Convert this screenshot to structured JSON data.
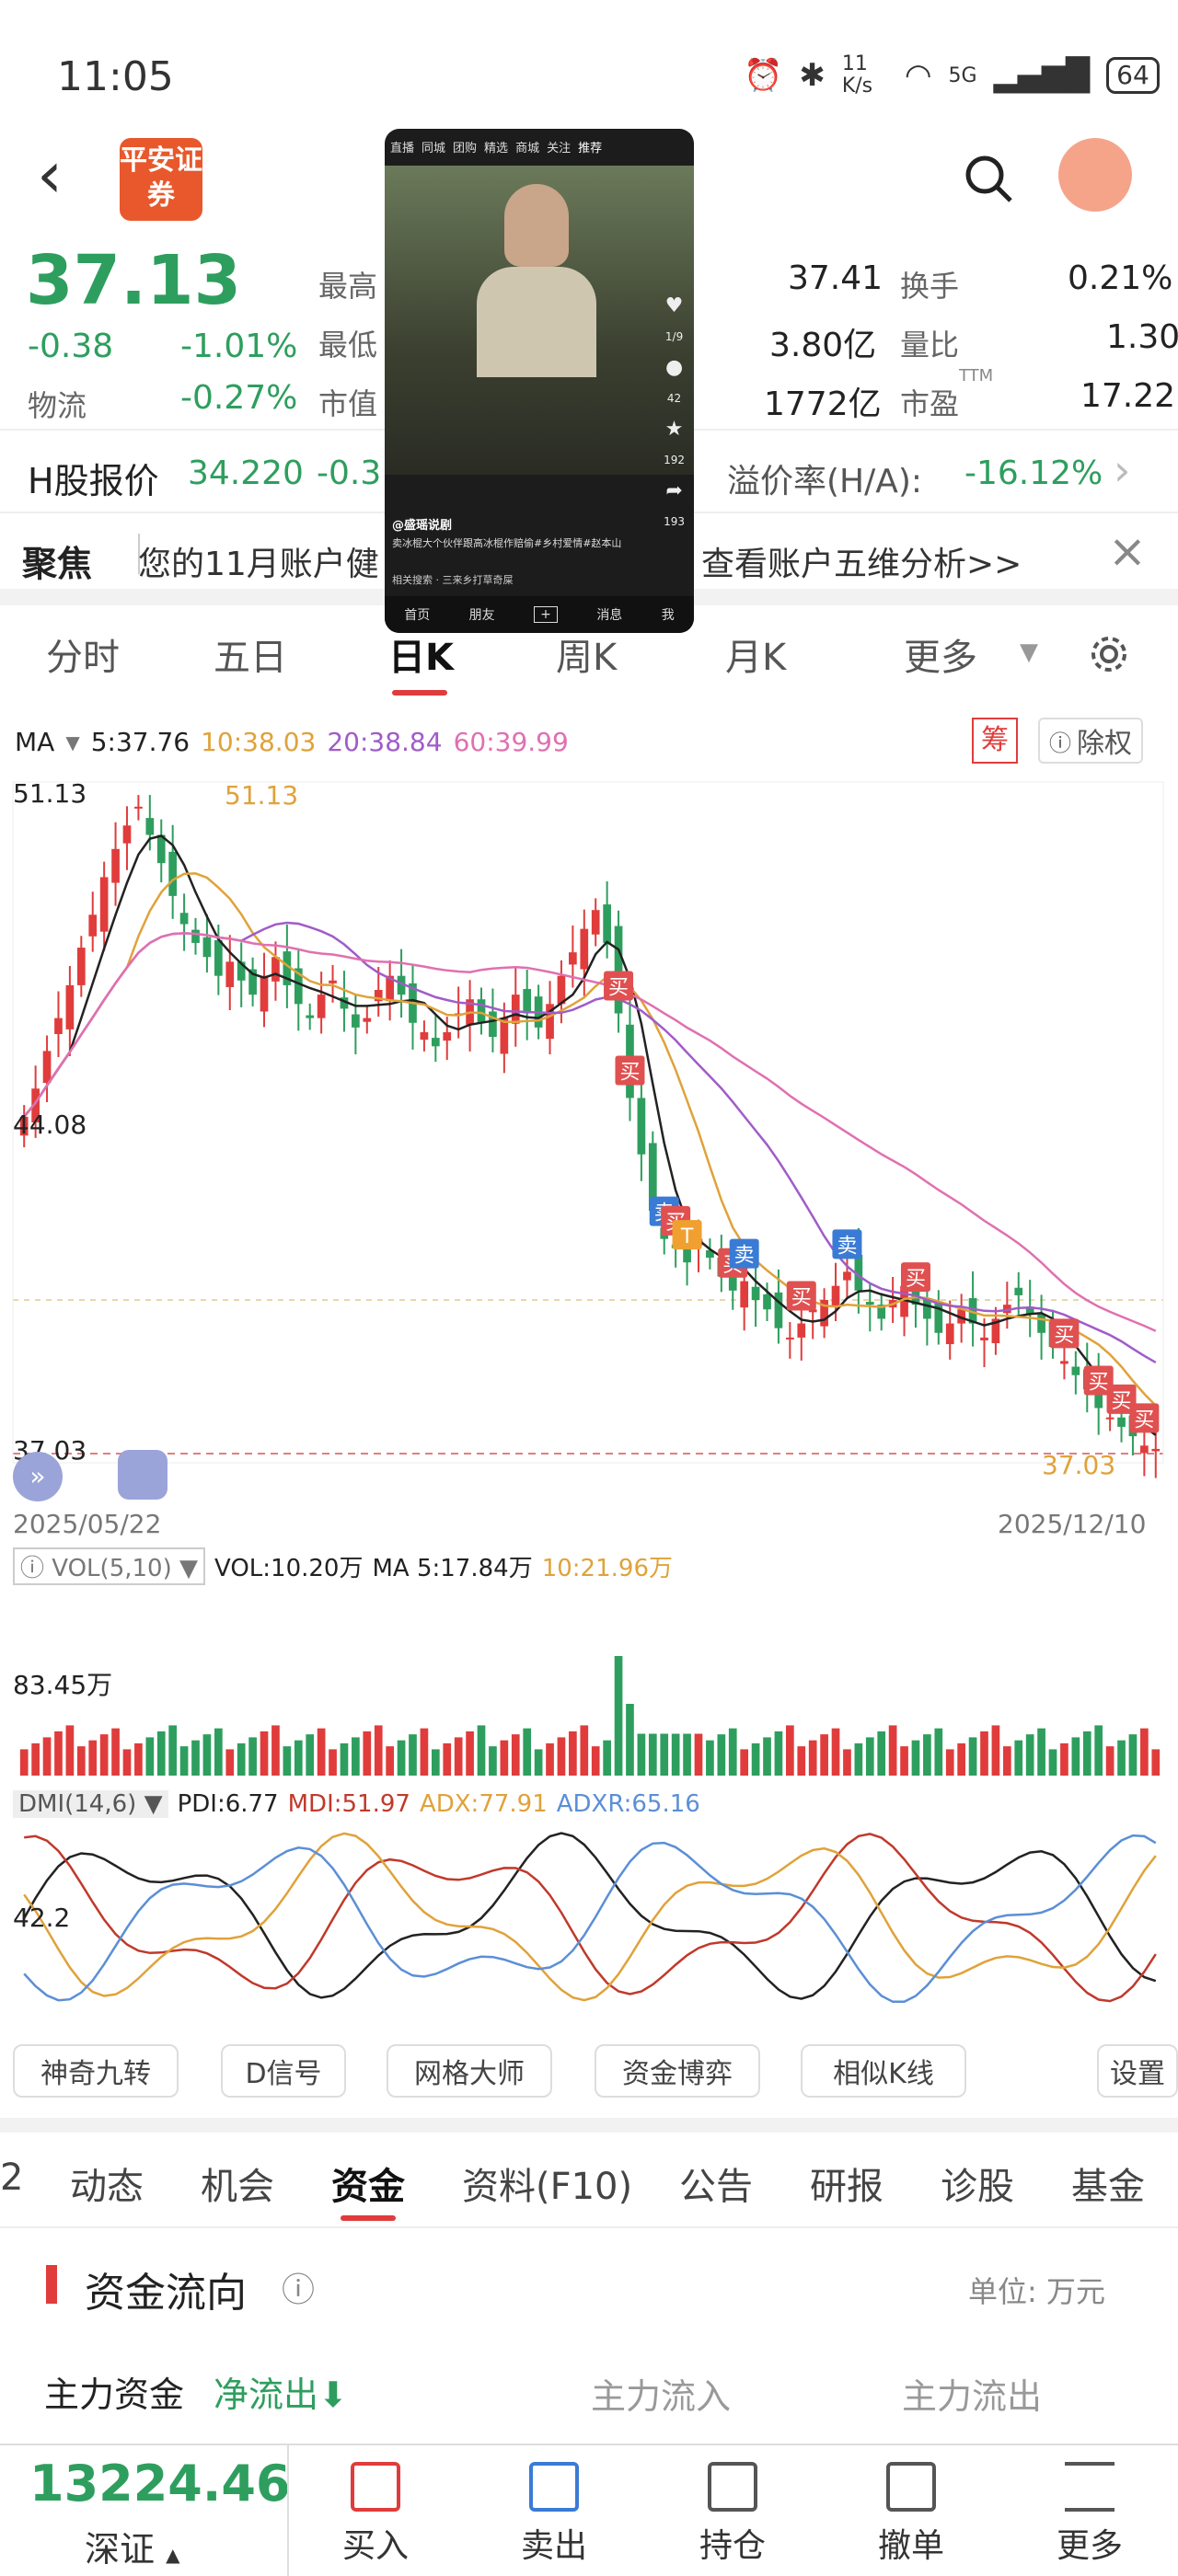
{
  "status_bar": {
    "time": "11:05",
    "net_speed": "11 K/s",
    "network": "5G",
    "battery": "64"
  },
  "header": {
    "logo_text": "平安证券"
  },
  "quote": {
    "price": "37.13",
    "change": "-0.38",
    "change_pct": "-1.01%",
    "sector_label": "物流",
    "sector_pct": "-0.27%",
    "high_label": "最高",
    "high_value": "37.41",
    "low_label": "最低",
    "low_value": "3.80亿",
    "mktcap_label": "市值",
    "mktcap_value": "1772亿",
    "turnover_label": "换手",
    "turnover_value": "0.21%",
    "volratio_label": "量比",
    "volratio_value": "1.30",
    "pe_label": "市盈",
    "pe_sup": "TTM",
    "pe_value": "17.22"
  },
  "hshare": {
    "label": "H股报价",
    "price": "34.220",
    "change": "-0.3",
    "premium_label": "溢价率(H/A):",
    "premium_value": "-16.12%"
  },
  "focus": {
    "label": "聚焦",
    "text_left": "您的11月账户健",
    "text_right": "查看账户五维分析>>"
  },
  "video": {
    "tabs": [
      "直播",
      "同城",
      "团购",
      "精选",
      "商城",
      "关注",
      "推荐"
    ],
    "author": "@盛瑶说剧",
    "caption": "卖冰棍大个伙伴跟高冰棍作赔偷#乡村爱情#赵本山",
    "search": "相关搜索 · 三来乡打草奇屎",
    "nav": [
      "首页",
      "朋友",
      "+",
      "消息",
      "我"
    ],
    "side_counts": [
      "1/9",
      "42",
      "192",
      "193"
    ]
  },
  "chart_tabs": [
    "分时",
    "五日",
    "日K",
    "周K",
    "月K",
    "更多"
  ],
  "ma": {
    "label": "MA",
    "ma5": "5:37.76",
    "ma10": "10:38.03",
    "ma20": "20:38.84",
    "ma60": "60:39.99",
    "chip": "筹",
    "fq": "除权"
  },
  "chart_data": [
    {
      "type": "candlestick",
      "x_start": "2025/05/22",
      "x_end": "2025/12/10",
      "y_labels": [
        "51.13",
        "44.08",
        "37.03"
      ],
      "high_marker": "51.13",
      "low_marker": "37.03",
      "closes": [
        44.2,
        44.8,
        45.6,
        46.3,
        47.0,
        47.8,
        48.5,
        49.3,
        49.9,
        50.4,
        50.8,
        50.2,
        49.6,
        48.9,
        48.3,
        47.9,
        47.6,
        47.2,
        47.5,
        47.1,
        46.8,
        47.2,
        47.6,
        47.0,
        46.6,
        46.3,
        46.8,
        47.1,
        46.5,
        46.1,
        46.3,
        46.9,
        47.2,
        46.8,
        46.2,
        46.0,
        45.7,
        46.0,
        46.4,
        46.7,
        46.2,
        45.9,
        46.3,
        46.8,
        46.4,
        46.1,
        46.6,
        47.2,
        47.7,
        48.2,
        48.6,
        47.9,
        46.4,
        44.6,
        43.4,
        42.2,
        41.6,
        41.4,
        41.1,
        41.6,
        41.2,
        40.8,
        40.5,
        40.7,
        40.3,
        40.1,
        39.7,
        39.5,
        39.8,
        40.1,
        40.3,
        40.6,
        40.9,
        40.5,
        40.2,
        39.9,
        40.3,
        40.6,
        40.2,
        39.9,
        39.6,
        39.8,
        40.1,
        39.8,
        39.5,
        39.9,
        40.2,
        40.4,
        40.0,
        39.6,
        39.3,
        39.0,
        38.7,
        38.4,
        38.0,
        37.8,
        37.6,
        37.4,
        37.2,
        37.13
      ],
      "trade_marks": [
        {
          "index": 52,
          "type": "买"
        },
        {
          "index": 53,
          "type": "买"
        },
        {
          "index": 56,
          "type": "卖"
        },
        {
          "index": 57,
          "type": "买"
        },
        {
          "index": 58,
          "type": "T"
        },
        {
          "index": 62,
          "type": "买"
        },
        {
          "index": 63,
          "type": "卖"
        },
        {
          "index": 68,
          "type": "买"
        },
        {
          "index": 72,
          "type": "卖"
        },
        {
          "index": 78,
          "type": "买"
        },
        {
          "index": 91,
          "type": "买"
        },
        {
          "index": 94,
          "type": "买"
        },
        {
          "index": 96,
          "type": "买"
        },
        {
          "index": 98,
          "type": "买"
        }
      ]
    },
    {
      "type": "bar",
      "title": "VOL(5,10)",
      "legend": {
        "vol": "VOL:10.20万",
        "ma5": "MA 5:17.84万",
        "ma10": "10:21.96万"
      },
      "y_label": "83.45万",
      "peak_index": 52
    },
    {
      "type": "line",
      "title": "DMI(14,6)",
      "legend": {
        "pdi": "PDI:6.77",
        "mdi": "MDI:51.97",
        "adx": "ADX:77.91",
        "adxr": "ADXR:65.16"
      },
      "y_label": "42.2"
    }
  ],
  "tools": [
    "神奇九转",
    "D信号",
    "网格大师",
    "资金博弈",
    "相似K线",
    "设置"
  ],
  "info_tabs": [
    "2",
    "动态",
    "机会",
    "资金",
    "资料(F10)",
    "公告",
    "研报",
    "诊股",
    "基金"
  ],
  "capital": {
    "title": "资金流向",
    "unit": "单位:  万元",
    "main_label": "主力资金",
    "net": "净流出",
    "inflow": "主力流入",
    "outflow": "主力流出"
  },
  "index_bar": {
    "value": "13224.46",
    "name": "深证"
  },
  "bottom_buttons": [
    "买入",
    "卖出",
    "持仓",
    "撤单",
    "更多"
  ]
}
